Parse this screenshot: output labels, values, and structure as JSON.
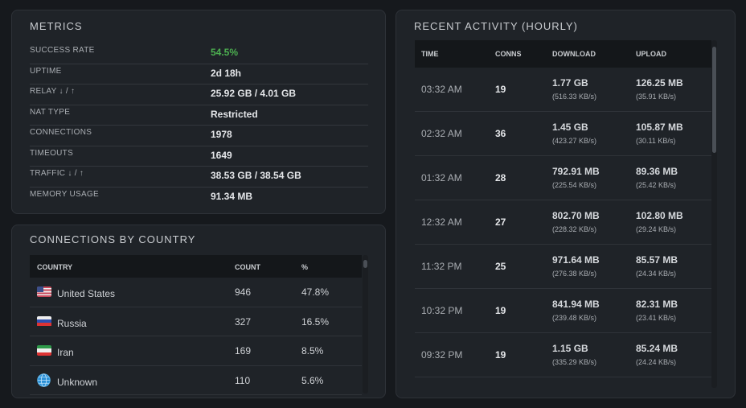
{
  "metrics": {
    "title": "METRICS",
    "rows": [
      {
        "label": "SUCCESS RATE",
        "value": "54.5%"
      },
      {
        "label": "UPTIME",
        "value": "2d 18h"
      },
      {
        "label": "RELAY ↓ / ↑",
        "value": "25.92 GB / 4.01 GB"
      },
      {
        "label": "NAT TYPE",
        "value": "Restricted"
      },
      {
        "label": "CONNECTIONS",
        "value": "1978"
      },
      {
        "label": "TIMEOUTS",
        "value": "1649"
      },
      {
        "label": "TRAFFIC ↓ / ↑",
        "value": "38.53 GB / 38.54 GB"
      },
      {
        "label": "MEMORY USAGE",
        "value": "91.34 MB"
      }
    ],
    "success_color": "#4caf50"
  },
  "countries": {
    "title": "CONNECTIONS BY COUNTRY",
    "headers": [
      "COUNTRY",
      "COUNT",
      "%"
    ],
    "rows": [
      {
        "flag": "us-flag-icon",
        "name": "United States",
        "count": "946",
        "pct": "47.8%"
      },
      {
        "flag": "ru-flag-icon",
        "name": "Russia",
        "count": "327",
        "pct": "16.5%"
      },
      {
        "flag": "ir-flag-icon",
        "name": "Iran",
        "count": "169",
        "pct": "8.5%"
      },
      {
        "flag": "globe-icon",
        "name": "Unknown",
        "count": "110",
        "pct": "5.6%"
      }
    ]
  },
  "activity": {
    "title": "RECENT ACTIVITY (HOURLY)",
    "headers": [
      "TIME",
      "CONNS",
      "DOWNLOAD",
      "UPLOAD"
    ],
    "rows": [
      {
        "time": "03:32 AM",
        "conns": "19",
        "down": "1.77 GB",
        "down_rate": "(516.33 KB/s)",
        "up": "126.25 MB",
        "up_rate": "(35.91 KB/s)"
      },
      {
        "time": "02:32 AM",
        "conns": "36",
        "down": "1.45 GB",
        "down_rate": "(423.27 KB/s)",
        "up": "105.87 MB",
        "up_rate": "(30.11 KB/s)"
      },
      {
        "time": "01:32 AM",
        "conns": "28",
        "down": "792.91 MB",
        "down_rate": "(225.54 KB/s)",
        "up": "89.36 MB",
        "up_rate": "(25.42 KB/s)"
      },
      {
        "time": "12:32 AM",
        "conns": "27",
        "down": "802.70 MB",
        "down_rate": "(228.32 KB/s)",
        "up": "102.80 MB",
        "up_rate": "(29.24 KB/s)"
      },
      {
        "time": "11:32 PM",
        "conns": "25",
        "down": "971.64 MB",
        "down_rate": "(276.38 KB/s)",
        "up": "85.57 MB",
        "up_rate": "(24.34 KB/s)"
      },
      {
        "time": "10:32 PM",
        "conns": "19",
        "down": "841.94 MB",
        "down_rate": "(239.48 KB/s)",
        "up": "82.31 MB",
        "up_rate": "(23.41 KB/s)"
      },
      {
        "time": "09:32 PM",
        "conns": "19",
        "down": "1.15 GB",
        "down_rate": "(335.29 KB/s)",
        "up": "85.24 MB",
        "up_rate": "(24.24 KB/s)"
      }
    ]
  }
}
